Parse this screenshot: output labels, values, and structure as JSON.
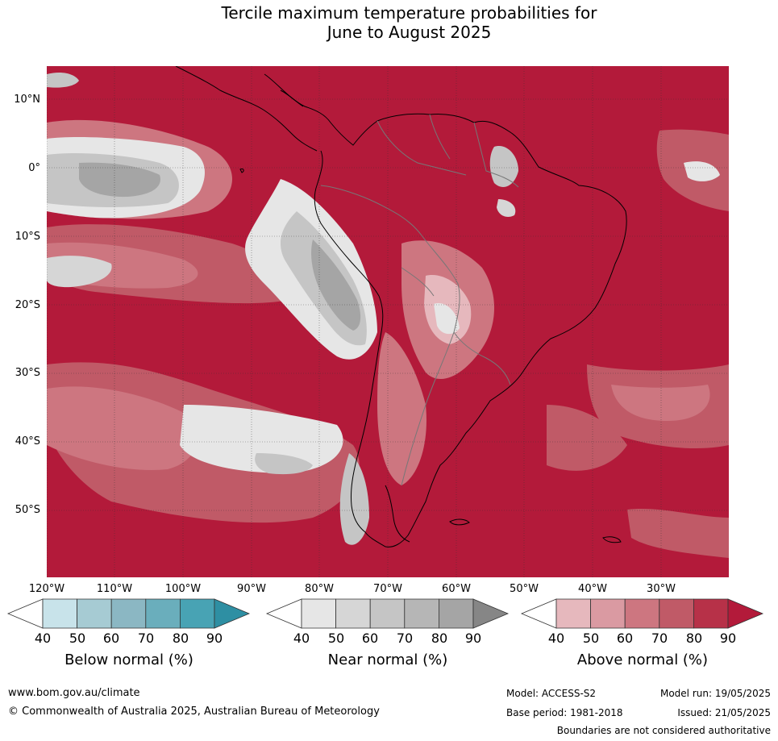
{
  "title_line1": "Tercile maximum temperature probabilities for",
  "title_line2": "June to August 2025",
  "lat_labels": [
    "10°N",
    "0°",
    "10°S",
    "20°S",
    "30°S",
    "40°S",
    "50°S"
  ],
  "lon_labels": [
    "120°W",
    "110°W",
    "100°W",
    "90°W",
    "80°W",
    "70°W",
    "60°W",
    "50°W",
    "40°W",
    "30°W"
  ],
  "colorbars": [
    {
      "label": "Below normal (%)",
      "ticks": [
        "40",
        "50",
        "60",
        "70",
        "80",
        "90"
      ],
      "colors": [
        "#ffffff",
        "#c8e3ea",
        "#a6cbd3",
        "#8bb7c3",
        "#6aaebc",
        "#48a3b4",
        "#2e8fa3"
      ]
    },
    {
      "label": "Near normal (%)",
      "ticks": [
        "40",
        "50",
        "60",
        "70",
        "80",
        "90"
      ],
      "colors": [
        "#ffffff",
        "#e6e6e6",
        "#d6d6d6",
        "#c5c5c5",
        "#b6b6b6",
        "#a5a5a5",
        "#868686"
      ]
    },
    {
      "label": "Above normal (%)",
      "ticks": [
        "40",
        "50",
        "60",
        "70",
        "80",
        "90"
      ],
      "colors": [
        "#ffffff",
        "#e6b8bd",
        "#da9aa2",
        "#cd7680",
        "#c05a67",
        "#b73148",
        "#b31a3a"
      ]
    }
  ],
  "footer": {
    "url": "www.bom.gov.au/climate",
    "copyright": "© Commonwealth of Australia 2025, Australian Bureau of Meteorology",
    "model": "Model: ACCESS-S2",
    "model_run": "Model run: 19/05/2025",
    "base_period": "Base period: 1981-2018",
    "issued": "Issued: 21/05/2025",
    "disclaimer": "Boundaries are not considered authoritative"
  }
}
